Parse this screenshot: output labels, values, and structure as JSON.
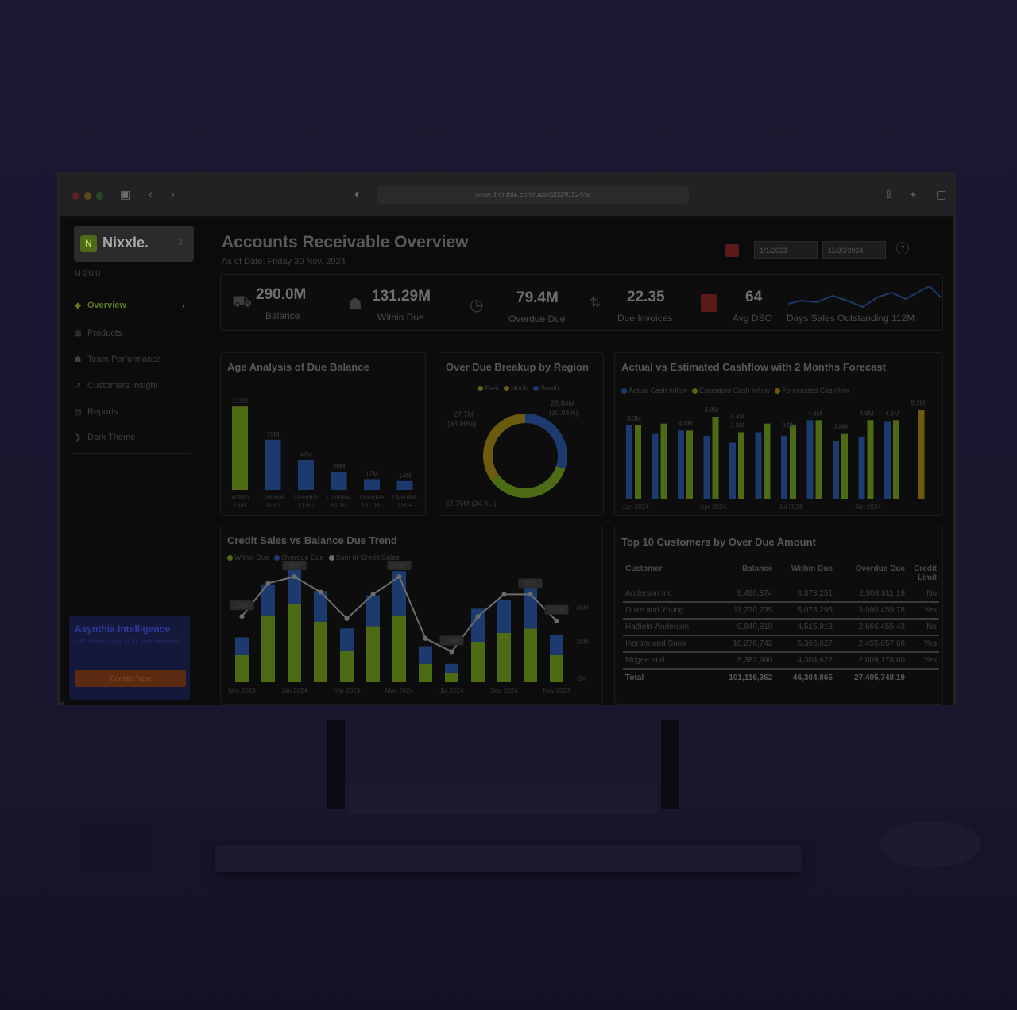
{
  "browser": {
    "url": "www.dribbble.com/user/20240124/ar"
  },
  "app": {
    "logo": {
      "badge": "N",
      "name": "Nixxle."
    },
    "menu_label": "MENU",
    "nav": [
      {
        "label": "Overview",
        "icon": "home-icon"
      },
      {
        "label": "Products",
        "icon": "box-icon"
      },
      {
        "label": "Team Performance",
        "icon": "team-icon"
      },
      {
        "label": "Customers Insight",
        "icon": "trend-icon"
      },
      {
        "label": "Reports",
        "icon": "grid-icon"
      },
      {
        "label": "Dark Theme",
        "icon": "moon-icon"
      }
    ],
    "promo": {
      "title": "Asynthia Intelligence",
      "subtitle": "Get deeper insights for your business",
      "button": "Contact Now"
    },
    "header": {
      "title": "Accounts  Receivable Overview",
      "subtitle": "As of Date: Friday 30 Nov, 2024",
      "date_from": "1/1/2023",
      "date_to": "11/30/2024"
    },
    "kpis": [
      {
        "value": "290.0M",
        "label": "Balance",
        "icon": "balance-icon"
      },
      {
        "value": "131.29M",
        "label": "Within Due",
        "icon": "people-icon"
      },
      {
        "value": "79.4M",
        "label": "Overdue Due",
        "icon": "clock-icon"
      },
      {
        "value": "22.35",
        "label": "Due Invoices",
        "icon": "sort-icon"
      },
      {
        "value": "64",
        "label": "Avg DSO",
        "icon": "calendar-icon"
      },
      {
        "value": "",
        "label": "Days Sales Outstanding 112M",
        "icon": ""
      }
    ],
    "colors": {
      "green": "#4d6b14",
      "blue": "#1d3a6e",
      "orange": "#6b5a0f",
      "red": "#5a1a1a"
    }
  },
  "charts": {
    "age": {
      "title": "Age Analysis of Due Balance"
    },
    "region": {
      "title": "Over Due Breakup by Region",
      "legend": [
        "East",
        "North",
        "South"
      ],
      "label_top": "23.84M",
      "label_top2": "(30.04%)",
      "label_left": "27.7M",
      "label_left2": "(34.90%)",
      "label_bottom": "27.76M (34.9...)"
    },
    "cashflow": {
      "title": "Actual vs Estimated Cashflow with 2 Months Forecast",
      "legend": [
        "Actual Cash inflow",
        "Estimated Cash inflow",
        "Forecasted Cashflow"
      ]
    },
    "trend": {
      "title": "Credit Sales vs Balance Due Trend",
      "legend": [
        "Within Due",
        "Overdue Due",
        "Sum of Credit Sales"
      ]
    }
  },
  "table": {
    "title": "Top 10 Customers by Over Due Amount",
    "columns": [
      "Customer",
      "Balance",
      "Within Due",
      "Overdue Due",
      "Credit Limit"
    ],
    "rows": [
      [
        "Anderson Inc",
        "9,490,874",
        "3,873,251",
        "2,908,811.19",
        "No"
      ],
      [
        "Duke and Young",
        "11,270,235",
        "5,073,295",
        "3,090,459.78",
        "Yes"
      ],
      [
        "Hatfield-Anderson",
        "9,840,810",
        "4,515,813",
        "2,666,455.43",
        "No"
      ],
      [
        "Ingram and Sons",
        "10,276,742",
        "5,366,627",
        "2,455,057.68",
        "Yes"
      ],
      [
        "Mcgee and",
        "8,382,990",
        "4,304,622",
        "2,009,178.60",
        "Yes"
      ]
    ],
    "total": [
      "Total",
      "101,116,362",
      "46,304,865",
      "27,405,748.19",
      ""
    ]
  },
  "chart_data": [
    {
      "type": "bar",
      "title": "Age Analysis of Due Balance",
      "categories": [
        "Within Due",
        "Overdue 0-30",
        "Overdue 31-60",
        "Overdue 61-90",
        "Overdue 91-180",
        "Overdue 180+"
      ],
      "values": [
        131,
        79,
        47,
        28,
        17,
        14
      ],
      "labels": [
        "131M",
        "79M",
        "47M",
        "28M",
        "17M",
        "14M"
      ],
      "colors": [
        "#4d6b14",
        "#1d3a6e",
        "#1d3a6e",
        "#1d3a6e",
        "#1d3a6e",
        "#1d3a6e"
      ],
      "ylim": [
        0,
        140
      ]
    },
    {
      "type": "pie",
      "title": "Over Due Breakup by Region",
      "categories": [
        "East",
        "North",
        "South"
      ],
      "values": [
        27.7,
        27.76,
        23.84
      ],
      "colors": [
        "#4d6b14",
        "#6b5a0f",
        "#1d3a6e"
      ]
    },
    {
      "type": "bar",
      "title": "Actual vs Estimated Cashflow with 2 Months Forecast",
      "categories": [
        "Jan 2024",
        "Feb 2024",
        "Mar 2024",
        "Apr 2024",
        "May 2024",
        "Jun 2024",
        "Jul 2024",
        "Aug 2024",
        "Sep 2024",
        "Oct 2024",
        "Nov 2024",
        "Dec 2024"
      ],
      "x_ticks": [
        "Jan 2024",
        "Apr 2024",
        "Jul 2024",
        "Oct 2024"
      ],
      "series": [
        {
          "name": "Actual Cash inflow",
          "values": [
            4.3,
            3.8,
            4.0,
            3.7,
            3.3,
            3.9,
            3.7,
            4.6,
            3.4,
            3.6,
            4.5,
            null
          ],
          "color": "#1d3a6e"
        },
        {
          "name": "Estimated Cash inflow",
          "values": [
            4.3,
            4.4,
            4.0,
            4.8,
            3.9,
            4.4,
            4.3,
            4.6,
            3.8,
            4.6,
            4.6,
            null
          ],
          "color": "#4d6b14"
        },
        {
          "name": "Forecasted Cashflow",
          "values": [
            null,
            null,
            null,
            null,
            null,
            null,
            null,
            null,
            null,
            null,
            null,
            5.2
          ],
          "color": "#6b5a0f"
        }
      ],
      "data_labels": [
        "4.3M",
        "4.0M",
        "4.8M",
        "4.4M",
        "3.9M",
        "3.9M",
        "4.6M",
        "3.8M",
        "4.6M",
        "4.6M",
        "5.2M"
      ],
      "ylim": [
        0,
        6
      ]
    },
    {
      "type": "bar",
      "title": "Credit Sales vs Balance Due Trend",
      "categories": [
        "Nov 2023",
        "Dec 2023",
        "Jan 2024",
        "Feb 2024",
        "Mar 2024",
        "Apr 2024",
        "May 2024",
        "Jun 2024",
        "Jul 2024",
        "Aug 2024",
        "Sep 2024",
        "Oct 2024",
        "Nov 2024"
      ],
      "x_ticks": [
        "Nov 2023",
        "Jan 2024",
        "Mar 2024",
        "May 2024",
        "Jul 2024",
        "Sep 2024",
        "Nov 2024"
      ],
      "series": [
        {
          "name": "Within Due",
          "values": [
            12,
            30,
            35,
            27,
            14,
            25,
            30,
            8,
            4,
            18,
            22,
            24,
            12
          ],
          "color": "#4d6b14"
        },
        {
          "name": "Overdue Due",
          "values": [
            8,
            14,
            19,
            14,
            10,
            14,
            20,
            8,
            4,
            15,
            15,
            21,
            9
          ],
          "color": "#1d3a6e"
        },
        {
          "name": "Sum of Credit Sales",
          "values": [
            23,
            38,
            41,
            34,
            22,
            33,
            41,
            13,
            7,
            23,
            33,
            33,
            21
          ],
          "color": "#6d6d6d"
        }
      ],
      "data_labels": [
        "23M",
        "41M",
        "41M",
        "13M",
        "33M",
        "21M"
      ],
      "y2_ticks": [
        "40M",
        "20M",
        "0M"
      ]
    }
  ]
}
